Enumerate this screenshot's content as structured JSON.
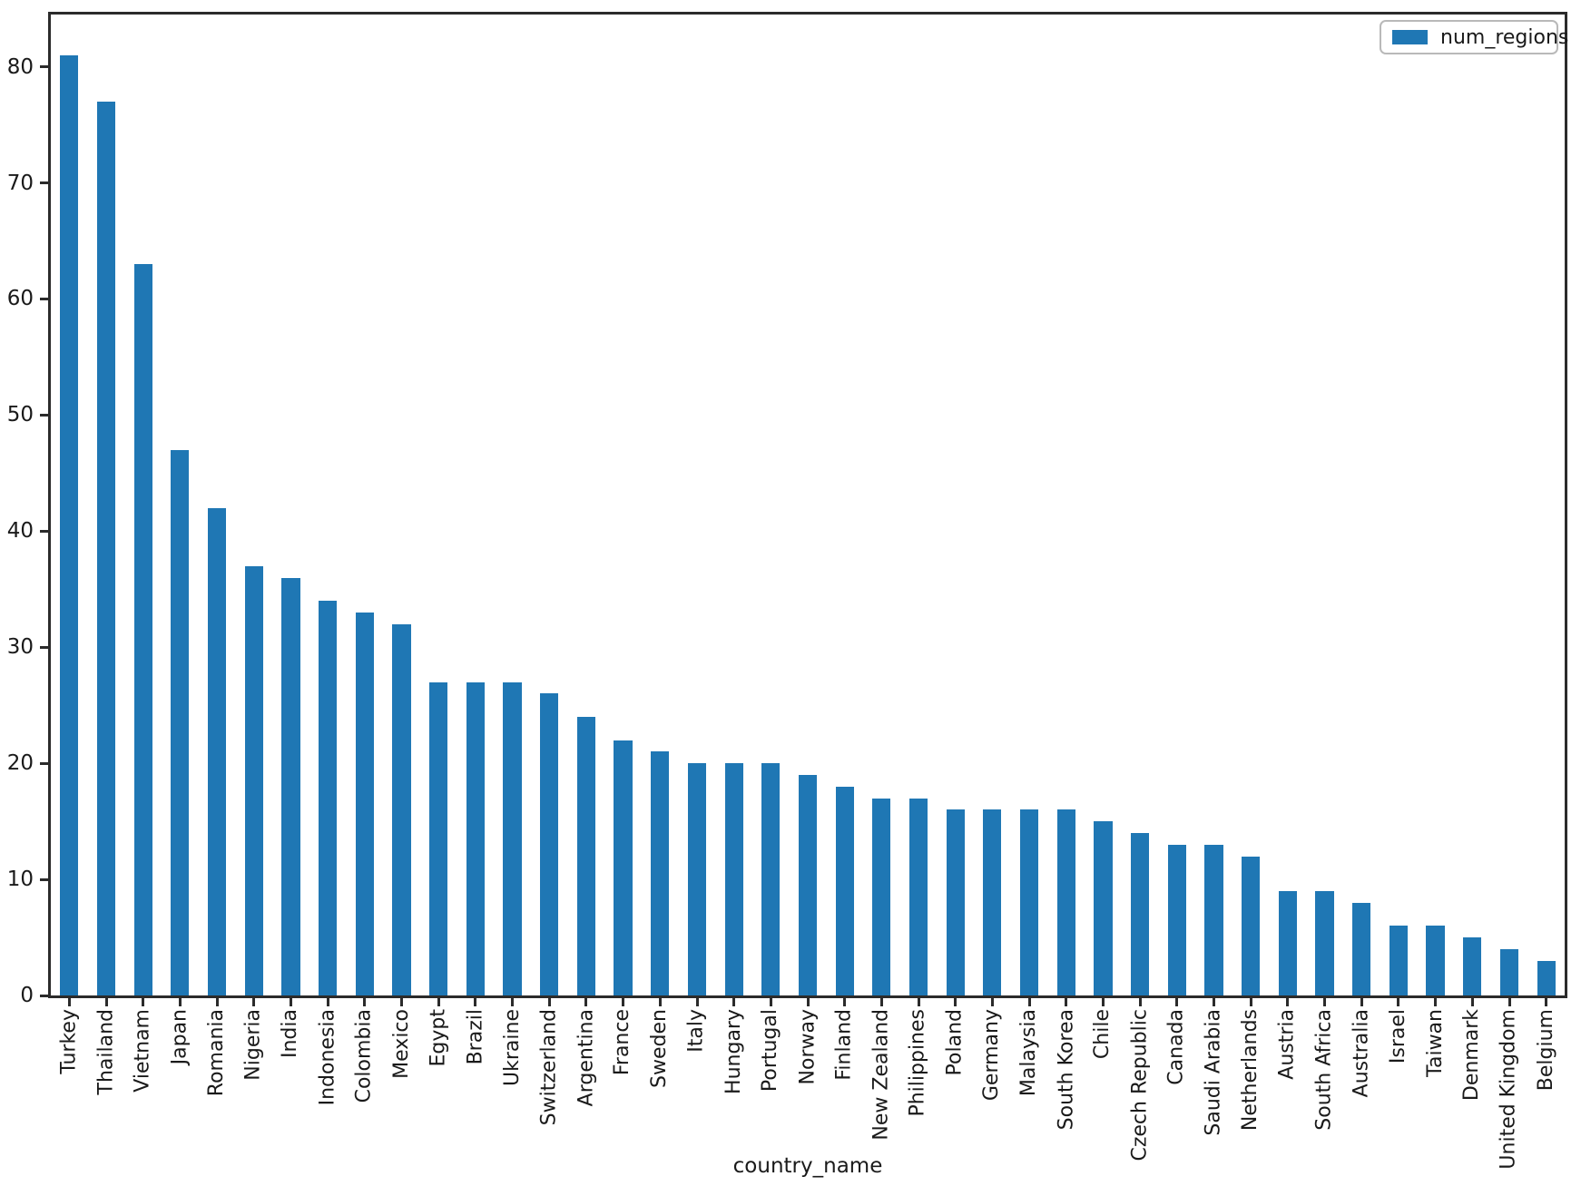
{
  "chart_data": {
    "type": "bar",
    "title": "",
    "xlabel": "country_name",
    "ylabel": "",
    "legend": [
      "num_regions"
    ],
    "legend_position": "upper right",
    "grid": false,
    "bar_color": "#1f77b4",
    "ylim": [
      0,
      84.5
    ],
    "yticks": [
      0,
      10,
      20,
      30,
      40,
      50,
      60,
      70,
      80
    ],
    "categories": [
      "Turkey",
      "Thailand",
      "Vietnam",
      "Japan",
      "Romania",
      "Nigeria",
      "India",
      "Indonesia",
      "Colombia",
      "Mexico",
      "Egypt",
      "Brazil",
      "Ukraine",
      "Switzerland",
      "Argentina",
      "France",
      "Sweden",
      "Italy",
      "Hungary",
      "Portugal",
      "Norway",
      "Finland",
      "New Zealand",
      "Philippines",
      "Poland",
      "Germany",
      "Malaysia",
      "South Korea",
      "Chile",
      "Czech Republic",
      "Canada",
      "Saudi Arabia",
      "Netherlands",
      "Austria",
      "South Africa",
      "Australia",
      "Israel",
      "Taiwan",
      "Denmark",
      "United Kingdom",
      "Belgium"
    ],
    "values": [
      81,
      77,
      63,
      47,
      42,
      37,
      36,
      34,
      33,
      32,
      27,
      27,
      27,
      26,
      24,
      22,
      21,
      20,
      20,
      20,
      19,
      18,
      17,
      17,
      16,
      16,
      16,
      16,
      15,
      14,
      13,
      13,
      12,
      9,
      9,
      8,
      6,
      6,
      5,
      4,
      3
    ]
  }
}
